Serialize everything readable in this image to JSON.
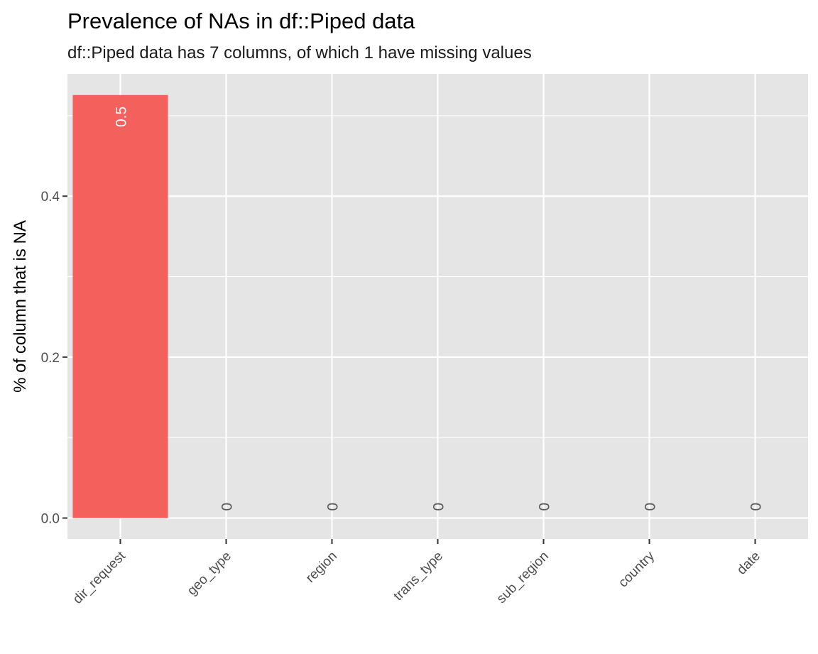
{
  "title": "Prevalence of NAs in df::Piped data",
  "subtitle": "df::Piped data has 7 columns, of which 1 have missing values",
  "chart_data": {
    "type": "bar",
    "categories": [
      "dir_request",
      "geo_type",
      "region",
      "trans_type",
      "sub_region",
      "country",
      "date"
    ],
    "values": [
      0.5257,
      0,
      0,
      0,
      0,
      0,
      0
    ],
    "data_labels": [
      "0.5",
      "0",
      "0",
      "0",
      "0",
      "0",
      "0"
    ],
    "xlabel": "",
    "ylabel": "% of column that is NA",
    "ylim": [
      -0.026,
      0.552
    ],
    "yticks": [
      0.0,
      0.2,
      0.4
    ],
    "ytick_labels": [
      "0.0",
      "0.2",
      "0.4"
    ],
    "grid": true,
    "colors": {
      "bar": "#F4605C",
      "panel": "#E5E5E5",
      "grid": "#FFFFFF"
    }
  }
}
